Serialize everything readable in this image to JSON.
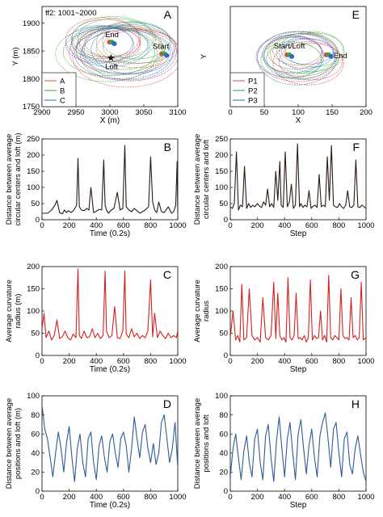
{
  "figure": {
    "panels": [
      {
        "id": "A",
        "letter": "A",
        "series_color": "#000000",
        "xlabel": "X (m)",
        "ylabel": "Y (m)",
        "xticks": [
          "2900",
          "2950",
          "3000",
          "3050",
          "3100"
        ],
        "yticks": [
          "1750",
          "1800",
          "1850",
          "1900"
        ],
        "note": "ff2: 1001~2000",
        "annotations": [
          "End",
          "Loft",
          "Start"
        ],
        "legend": [
          "A",
          "B",
          "C"
        ]
      },
      {
        "id": "E",
        "letter": "E",
        "series_color": "#000000",
        "xlabel": "X",
        "ylabel": "Y",
        "xticks": [
          "0",
          "50",
          "100",
          "150",
          "200"
        ],
        "yticks": [],
        "note": "",
        "annotations": [
          "Start/Loft",
          "End"
        ],
        "legend": [
          "P1",
          "P2",
          "P3"
        ]
      },
      {
        "id": "B",
        "letter": "B",
        "series_color": "#2a1a12",
        "xlabel": "Time (0.2s)",
        "ylabel": "Distance between average circular centers and loft (m)",
        "xticks": [
          "0",
          "200",
          "400",
          "600",
          "800",
          "1000"
        ],
        "yticks": [
          "0",
          "50",
          "100",
          "150",
          "200",
          "250"
        ]
      },
      {
        "id": "F",
        "letter": "F",
        "series_color": "#2a1a12",
        "xlabel": "Step",
        "ylabel": "Distance between average circular centers and loft",
        "xticks": [
          "0",
          "200",
          "400",
          "600",
          "800",
          "1000"
        ],
        "yticks": [
          "0",
          "50",
          "100",
          "150",
          "200",
          "250"
        ]
      },
      {
        "id": "C",
        "letter": "C",
        "series_color": "#d42020",
        "xlabel": "Time (0.2s)",
        "ylabel": "Average curvature radius (m)",
        "xticks": [
          "0",
          "200",
          "400",
          "600",
          "800",
          "1000"
        ],
        "yticks": [
          "0",
          "50",
          "100",
          "150",
          "200"
        ]
      },
      {
        "id": "G",
        "letter": "G",
        "series_color": "#d42020",
        "xlabel": "Step",
        "ylabel": "Average curvature radius",
        "xticks": [
          "0",
          "200",
          "400",
          "600",
          "800",
          "1000"
        ],
        "yticks": [
          "0",
          "50",
          "100",
          "150",
          "200"
        ]
      },
      {
        "id": "D",
        "letter": "D",
        "series_color": "#2e5a9c",
        "xlabel": "Time (0.2s)",
        "ylabel": "Distance between average positions and loft (m)",
        "xticks": [
          "0",
          "200",
          "400",
          "600",
          "800",
          "1000"
        ],
        "yticks": [
          "0",
          "20",
          "40",
          "60",
          "80",
          "100"
        ]
      },
      {
        "id": "H",
        "letter": "H",
        "series_color": "#2e5a9c",
        "xlabel": "Step",
        "ylabel": "Distance between average positions and loft",
        "xticks": [
          "0",
          "200",
          "400",
          "600",
          "800",
          "1000"
        ],
        "yticks": [
          "0",
          "20",
          "40",
          "60",
          "80",
          "100"
        ]
      }
    ]
  },
  "chart_data": [
    {
      "panel": "A",
      "type": "line",
      "xlabel": "X (m)",
      "ylabel": "Y (m)",
      "xlim": [
        2900,
        3100
      ],
      "ylim": [
        1750,
        1930
      ],
      "note": "ff2: 1001~2000",
      "legend": [
        "A",
        "B",
        "C"
      ],
      "legend_placement": "bottom-left",
      "series": [
        {
          "name": "A",
          "color": "#d44",
          "loops": [
            [
              3010,
              1848,
              70,
              48
            ],
            [
              3040,
              1855,
              60,
              35
            ],
            [
              2990,
              1870,
              55,
              40
            ],
            [
              3025,
              1840,
              80,
              55
            ],
            [
              3000,
              1862,
              45,
              30
            ]
          ]
        },
        {
          "name": "B",
          "color": "#3a3",
          "loops": [
            [
              3015,
              1852,
              65,
              45
            ],
            [
              2995,
              1845,
              75,
              50
            ],
            [
              3035,
              1865,
              55,
              38
            ],
            [
              3005,
              1870,
              62,
              42
            ]
          ]
        },
        {
          "name": "C",
          "color": "#36c",
          "loops": [
            [
              3020,
              1845,
              72,
              46
            ],
            [
              3000,
              1858,
              58,
              36
            ],
            [
              3030,
              1850,
              68,
              52
            ],
            [
              2985,
              1862,
              50,
              34
            ]
          ]
        }
      ],
      "points": [
        {
          "label": "End",
          "x": 3003,
          "y": 1866
        },
        {
          "label": "Loft",
          "x": 3000,
          "y": 1838
        },
        {
          "label": "Start",
          "x": 3080,
          "y": 1845
        }
      ]
    },
    {
      "panel": "E",
      "type": "line",
      "xlabel": "X",
      "ylabel": "Y",
      "xlim": [
        0,
        200
      ],
      "legend": [
        "P1",
        "P2",
        "P3"
      ],
      "legend_placement": "bottom-left",
      "series": [
        {
          "name": "P1",
          "color": "#d44",
          "loops": [
            [
              100,
              0,
              60,
              30
            ],
            [
              95,
              5,
              40,
              20
            ],
            [
              115,
              -8,
              52,
              26
            ]
          ]
        },
        {
          "name": "P2",
          "color": "#3a3",
          "loops": [
            [
              105,
              2,
              55,
              28
            ],
            [
              90,
              -4,
              45,
              22
            ],
            [
              120,
              6,
              48,
              24
            ]
          ]
        },
        {
          "name": "P3",
          "color": "#36c",
          "loops": [
            [
              98,
              -2,
              58,
              32
            ],
            [
              110,
              4,
              42,
              18
            ],
            [
              88,
              0,
              50,
              25
            ]
          ]
        }
      ],
      "points": [
        {
          "label": "Start/Loft",
          "x": 87,
          "y": 2
        },
        {
          "label": "End",
          "x": 145,
          "y": 2
        }
      ]
    },
    {
      "panel": "B",
      "type": "line",
      "xlabel": "Time (0.2s)",
      "ylabel": "Distance between average circular centers and loft (m)",
      "xlim": [
        0,
        1000
      ],
      "ylim": [
        0,
        250
      ],
      "color": "#2a1a12",
      "x": [
        0,
        40,
        70,
        95,
        110,
        130,
        150,
        165,
        180,
        195,
        215,
        235,
        255,
        265,
        275,
        290,
        310,
        330,
        345,
        360,
        380,
        395,
        420,
        440,
        455,
        465,
        475,
        490,
        510,
        530,
        555,
        575,
        595,
        610,
        620,
        640,
        660,
        680,
        700,
        720,
        740,
        760,
        785,
        800,
        815,
        830,
        845,
        860,
        880,
        900,
        930,
        955,
        970,
        985,
        995,
        1000
      ],
      "values": [
        20,
        20,
        30,
        45,
        60,
        22,
        18,
        30,
        22,
        28,
        22,
        30,
        45,
        190,
        40,
        30,
        28,
        35,
        30,
        100,
        22,
        25,
        32,
        30,
        185,
        45,
        30,
        20,
        30,
        35,
        85,
        30,
        35,
        230,
        40,
        30,
        25,
        35,
        28,
        20,
        25,
        30,
        40,
        195,
        55,
        30,
        22,
        55,
        25,
        22,
        40,
        20,
        25,
        45,
        180,
        20
      ]
    },
    {
      "panel": "F",
      "type": "line",
      "xlabel": "Step",
      "ylabel": "Distance between average circular centers and loft",
      "xlim": [
        0,
        1000
      ],
      "ylim": [
        0,
        250
      ],
      "color": "#2a1a12",
      "x": [
        0,
        15,
        30,
        45,
        60,
        75,
        90,
        105,
        120,
        135,
        150,
        165,
        180,
        200,
        215,
        230,
        245,
        260,
        275,
        290,
        305,
        320,
        335,
        350,
        365,
        375,
        390,
        405,
        420,
        435,
        450,
        465,
        480,
        495,
        510,
        520,
        535,
        550,
        565,
        580,
        595,
        610,
        625,
        640,
        655,
        670,
        685,
        700,
        715,
        730,
        745,
        760,
        775,
        790,
        805,
        820,
        835,
        850,
        865,
        880,
        895,
        910,
        925,
        940,
        955,
        970,
        985,
        1000
      ],
      "values": [
        40,
        35,
        50,
        210,
        30,
        45,
        40,
        165,
        35,
        50,
        38,
        45,
        40,
        50,
        42,
        38,
        55,
        45,
        95,
        40,
        50,
        38,
        150,
        60,
        180,
        45,
        38,
        210,
        40,
        55,
        110,
        35,
        45,
        235,
        40,
        50,
        38,
        45,
        40,
        90,
        35,
        42,
        45,
        38,
        140,
        40,
        45,
        40,
        195,
        60,
        230,
        45,
        40,
        38,
        50,
        40,
        35,
        45,
        90,
        40,
        38,
        45,
        185,
        40,
        38,
        45,
        40,
        35
      ]
    },
    {
      "panel": "C",
      "type": "line",
      "xlabel": "Time (0.2s)",
      "ylabel": "Average curvature radius (m)",
      "xlim": [
        0,
        1000
      ],
      "ylim": [
        0,
        200
      ],
      "color": "#d42020",
      "x": [
        0,
        15,
        30,
        50,
        70,
        90,
        110,
        130,
        150,
        170,
        190,
        210,
        230,
        250,
        265,
        275,
        290,
        310,
        330,
        350,
        370,
        390,
        410,
        430,
        450,
        465,
        475,
        495,
        515,
        535,
        555,
        575,
        595,
        610,
        620,
        640,
        660,
        680,
        700,
        720,
        740,
        760,
        780,
        800,
        815,
        830,
        850,
        870,
        890,
        910,
        930,
        950,
        970,
        990,
        1000
      ],
      "values": [
        60,
        95,
        40,
        55,
        35,
        45,
        80,
        38,
        42,
        55,
        40,
        35,
        48,
        40,
        195,
        45,
        38,
        55,
        40,
        42,
        60,
        40,
        50,
        38,
        45,
        190,
        55,
        40,
        45,
        110,
        40,
        38,
        55,
        190,
        48,
        40,
        60,
        42,
        50,
        38,
        45,
        40,
        55,
        170,
        42,
        95,
        40,
        55,
        45,
        38,
        50,
        40,
        45,
        40,
        55
      ]
    },
    {
      "panel": "G",
      "type": "line",
      "xlabel": "Step",
      "ylabel": "Average curvature radius",
      "xlim": [
        0,
        1000
      ],
      "ylim": [
        0,
        200
      ],
      "color": "#d42020",
      "x": [
        0,
        20,
        40,
        55,
        70,
        85,
        100,
        120,
        140,
        160,
        180,
        200,
        220,
        240,
        260,
        280,
        300,
        320,
        335,
        350,
        365,
        380,
        395,
        410,
        425,
        440,
        455,
        470,
        485,
        500,
        515,
        530,
        545,
        560,
        575,
        590,
        605,
        620,
        635,
        650,
        665,
        680,
        695,
        710,
        725,
        740,
        755,
        770,
        785,
        800,
        815,
        830,
        845,
        860,
        875,
        890,
        905,
        920,
        935,
        950,
        965,
        980,
        1000
      ],
      "values": [
        40,
        100,
        35,
        45,
        30,
        160,
        35,
        40,
        150,
        45,
        35,
        40,
        30,
        130,
        40,
        35,
        45,
        165,
        38,
        140,
        45,
        35,
        40,
        30,
        175,
        40,
        35,
        45,
        140,
        38,
        40,
        35,
        45,
        30,
        40,
        170,
        35,
        45,
        38,
        40,
        100,
        35,
        45,
        30,
        180,
        40,
        35,
        45,
        40,
        35,
        150,
        45,
        38,
        40,
        35,
        130,
        40,
        45,
        35,
        40,
        165,
        35,
        40
      ]
    },
    {
      "panel": "D",
      "type": "line",
      "xlabel": "Time (0.2s)",
      "ylabel": "Distance between average positions and loft (m)",
      "xlim": [
        0,
        1000
      ],
      "ylim": [
        0,
        100
      ],
      "color": "#2e5a9c",
      "x": [
        0,
        20,
        40,
        60,
        80,
        100,
        120,
        140,
        160,
        180,
        200,
        220,
        240,
        260,
        280,
        300,
        320,
        340,
        360,
        380,
        400,
        420,
        440,
        460,
        480,
        500,
        520,
        540,
        560,
        580,
        600,
        620,
        640,
        660,
        680,
        700,
        720,
        740,
        760,
        780,
        800,
        820,
        840,
        860,
        880,
        900,
        920,
        940,
        960,
        980,
        1000
      ],
      "values": [
        90,
        65,
        55,
        35,
        15,
        40,
        62,
        45,
        20,
        50,
        68,
        35,
        10,
        45,
        60,
        30,
        15,
        55,
        62,
        30,
        12,
        48,
        58,
        35,
        20,
        52,
        60,
        40,
        25,
        55,
        62,
        48,
        20,
        45,
        78,
        55,
        35,
        62,
        70,
        45,
        30,
        50,
        28,
        40,
        72,
        80,
        55,
        30,
        45,
        72,
        25
      ]
    },
    {
      "panel": "H",
      "type": "line",
      "xlabel": "Step",
      "ylabel": "Distance between average positions and loft",
      "xlim": [
        0,
        1000
      ],
      "ylim": [
        0,
        100
      ],
      "color": "#2e5a9c",
      "x": [
        0,
        20,
        40,
        60,
        80,
        100,
        120,
        140,
        160,
        180,
        200,
        220,
        240,
        260,
        280,
        300,
        320,
        340,
        360,
        380,
        400,
        420,
        440,
        460,
        480,
        500,
        520,
        540,
        560,
        580,
        600,
        620,
        640,
        660,
        680,
        700,
        720,
        740,
        760,
        780,
        800,
        820,
        840,
        860,
        880,
        900,
        920,
        940,
        960,
        980,
        1000
      ],
      "values": [
        15,
        45,
        60,
        35,
        12,
        42,
        58,
        30,
        15,
        55,
        65,
        30,
        12,
        58,
        70,
        35,
        10,
        52,
        78,
        45,
        15,
        55,
        72,
        40,
        12,
        60,
        75,
        45,
        18,
        48,
        65,
        35,
        15,
        58,
        72,
        82,
        55,
        25,
        65,
        72,
        40,
        15,
        55,
        62,
        28,
        18,
        45,
        58,
        38,
        20,
        10
      ]
    }
  ]
}
